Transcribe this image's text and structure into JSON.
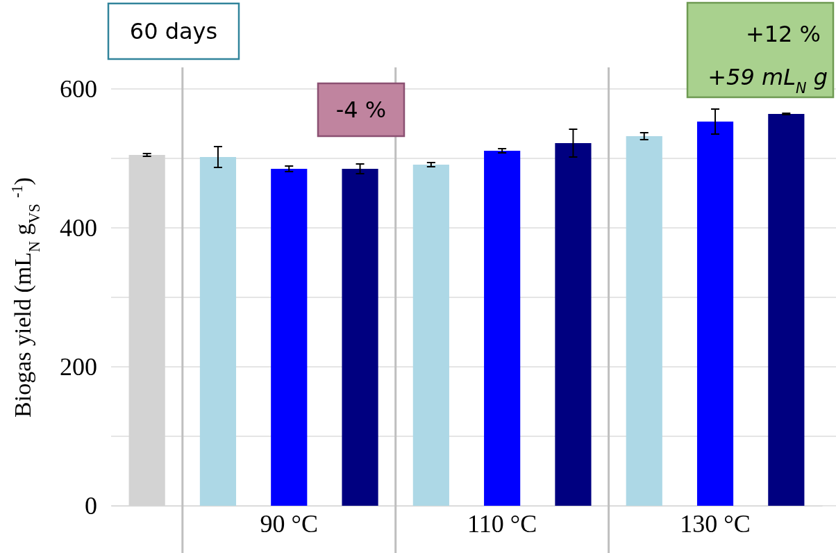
{
  "chart_data": {
    "type": "bar",
    "ylabel": "Biogas yield (mL$_{N}$ g$_{VS}$ $^{-1}$)",
    "categories": [
      null,
      null,
      "90 °C",
      null,
      null,
      "110 °C",
      null,
      null,
      "130 °C",
      null
    ],
    "values": [
      505,
      502,
      485,
      485,
      491,
      511,
      522,
      532,
      553,
      564
    ],
    "errors": [
      2,
      15,
      4,
      7,
      3,
      3,
      20,
      5,
      18,
      1
    ],
    "colors": [
      "#d3d3d3",
      "#add8e6",
      "#0000ff",
      "#000080",
      "#add8e6",
      "#0000ff",
      "#000080",
      "#add8e6",
      "#0000ff",
      "#000080"
    ],
    "ylim": [
      0,
      600
    ],
    "yticks": [
      0,
      {
        "value": 100,
        "label": null
      },
      200,
      {
        "value": 300,
        "label": null
      },
      400,
      {
        "value": 500,
        "label": null
      },
      600
    ],
    "grid": "y",
    "annotations": [
      "60 days",
      "-4 %",
      "+12 %",
      "+59 mL$_{N}$ g"
    ]
  }
}
